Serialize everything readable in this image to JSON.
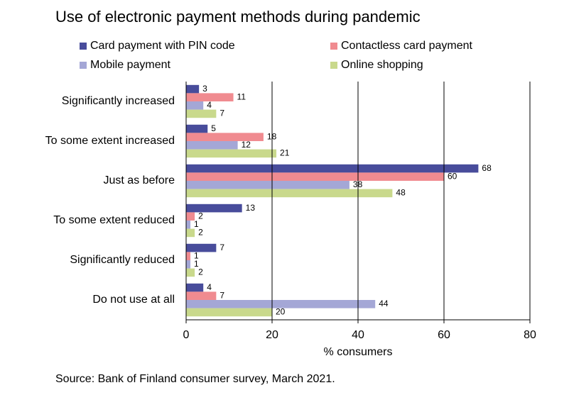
{
  "chart_data": {
    "type": "barh",
    "title": "Use of electronic payment methods during pandemic",
    "source": "Source: Bank of Finland consumer survey, March 2021.",
    "xlabel": "% consumers",
    "categories": [
      "Significantly increased",
      "To some extent increased",
      "Just as before",
      "To some extent reduced",
      "Significantly reduced",
      "Do not use at all"
    ],
    "series": [
      {
        "name": "Card payment with PIN code",
        "color": "#484c9b",
        "values": [
          3,
          5,
          68,
          13,
          7,
          4
        ]
      },
      {
        "name": "Contactless card payment",
        "color": "#f08b90",
        "values": [
          11,
          18,
          60,
          2,
          1,
          7
        ]
      },
      {
        "name": "Mobile payment",
        "color": "#a4a7d6",
        "values": [
          4,
          12,
          38,
          1,
          1,
          44
        ]
      },
      {
        "name": "Online shopping",
        "color": "#c9d98c",
        "values": [
          7,
          21,
          48,
          2,
          2,
          20
        ]
      }
    ],
    "xlim": [
      0,
      80
    ],
    "xticks": [
      0,
      20,
      40,
      60,
      80
    ],
    "grid": true,
    "legend": "top"
  }
}
